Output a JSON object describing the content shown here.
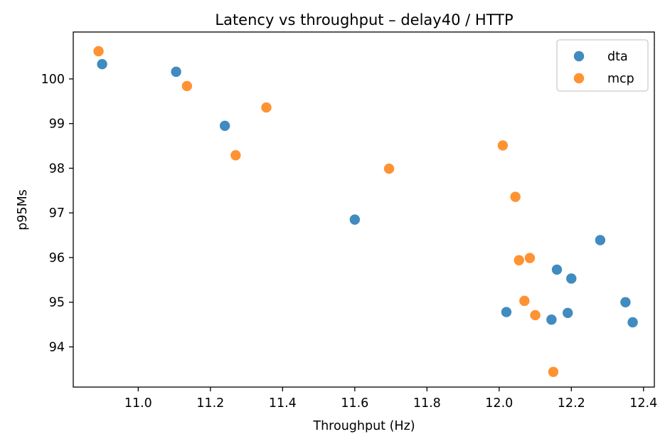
{
  "chart_data": {
    "type": "scatter",
    "title": "Latency vs throughput – delay40 / HTTP",
    "xlabel": "Throughput (Hz)",
    "ylabel": "p95Ms",
    "xlim": [
      10.82,
      12.43
    ],
    "ylim": [
      93.1,
      101.05
    ],
    "xticks": [
      11.0,
      11.2,
      11.4,
      11.6,
      11.8,
      12.0,
      12.2,
      12.4
    ],
    "xtick_labels": [
      "11.0",
      "11.2",
      "11.4",
      "11.6",
      "11.8",
      "12.0",
      "12.2",
      "12.4"
    ],
    "yticks": [
      94,
      95,
      96,
      97,
      98,
      99,
      100
    ],
    "ytick_labels": [
      "94",
      "95",
      "96",
      "97",
      "98",
      "99",
      "100"
    ],
    "grid": false,
    "legend_position": "top-right",
    "series": [
      {
        "name": "dta",
        "color": "#1f77b4",
        "points": [
          {
            "x": 10.9,
            "y": 100.33
          },
          {
            "x": 11.105,
            "y": 100.16
          },
          {
            "x": 11.24,
            "y": 98.95
          },
          {
            "x": 11.6,
            "y": 96.85
          },
          {
            "x": 12.02,
            "y": 94.78
          },
          {
            "x": 12.145,
            "y": 94.61
          },
          {
            "x": 12.16,
            "y": 95.73
          },
          {
            "x": 12.19,
            "y": 94.76
          },
          {
            "x": 12.2,
            "y": 95.53
          },
          {
            "x": 12.28,
            "y": 96.39
          },
          {
            "x": 12.35,
            "y": 95.0
          },
          {
            "x": 12.37,
            "y": 94.55
          }
        ]
      },
      {
        "name": "mcp",
        "color": "#ff7f0e",
        "points": [
          {
            "x": 10.89,
            "y": 100.62
          },
          {
            "x": 11.135,
            "y": 99.84
          },
          {
            "x": 11.27,
            "y": 98.29
          },
          {
            "x": 11.355,
            "y": 99.36
          },
          {
            "x": 11.695,
            "y": 97.99
          },
          {
            "x": 12.01,
            "y": 98.51
          },
          {
            "x": 12.045,
            "y": 97.36
          },
          {
            "x": 12.055,
            "y": 95.94
          },
          {
            "x": 12.07,
            "y": 95.03
          },
          {
            "x": 12.085,
            "y": 95.99
          },
          {
            "x": 12.1,
            "y": 94.71
          },
          {
            "x": 12.15,
            "y": 93.44
          }
        ]
      }
    ]
  }
}
